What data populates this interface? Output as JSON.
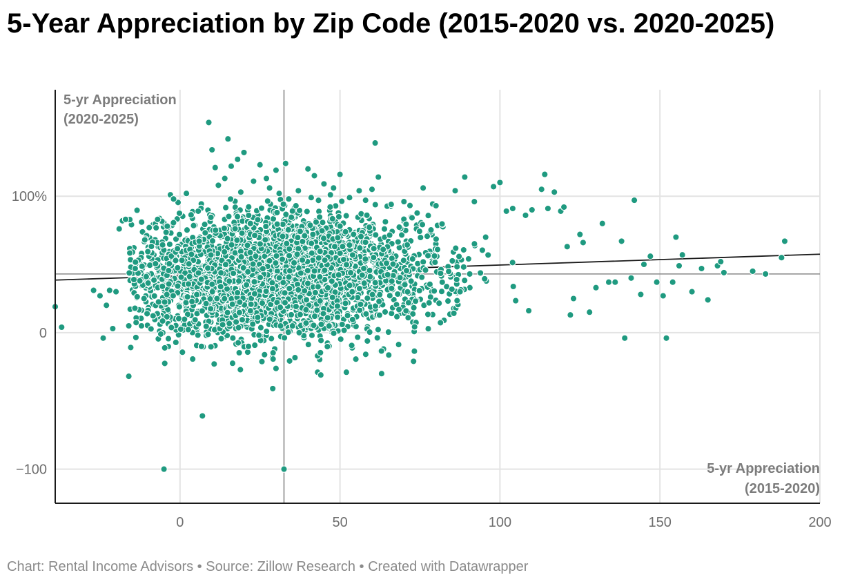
{
  "title": "5-Year Appreciation by Zip Code (2015-2020 vs. 2020-2025)",
  "footer": "Chart: Rental Income Advisors • Source: Zillow Research • Created with Datawrapper",
  "colors": {
    "point": "#1f9a80",
    "point_stroke": "#ffffff",
    "grid": "#e3e3e3",
    "axis": "#1a1a1a",
    "reference": "#888888",
    "trend": "#1a1a1a"
  },
  "chart_data": {
    "type": "scatter",
    "title": "5-Year Appreciation by Zip Code (2015-2020 vs. 2020-2025)",
    "xlabel_lines": [
      "5-yr Appreciation",
      "(2015-2020)"
    ],
    "ylabel_lines": [
      "5-yr Appreciation",
      "(2020-2025)"
    ],
    "xlim": [
      -39,
      200
    ],
    "ylim": [
      -125,
      178
    ],
    "x_ticks": [
      0,
      50,
      100,
      150,
      200
    ],
    "x_tick_labels": [
      "0",
      "50",
      "100",
      "150",
      "200"
    ],
    "y_ticks": [
      -100,
      0,
      100
    ],
    "y_tick_labels": [
      "−100",
      "0",
      "100%"
    ],
    "reference_lines": {
      "x": 32.5,
      "y": 43
    },
    "trend_line": {
      "x": [
        -39,
        200
      ],
      "y": [
        38.5,
        57.5
      ]
    },
    "cloud": {
      "count": 3200,
      "x_center": 30,
      "x_spread": 24,
      "y_center": 41,
      "y_spread": 23,
      "x_min": -16,
      "x_max": 135,
      "seed": 7
    },
    "points": [
      [
        -39,
        19
      ],
      [
        -37,
        4
      ],
      [
        -27,
        31
      ],
      [
        -25,
        27
      ],
      [
        -24,
        -4
      ],
      [
        -23,
        20
      ],
      [
        -22,
        31
      ],
      [
        -21,
        3
      ],
      [
        -20,
        30
      ],
      [
        -19,
        76
      ],
      [
        -18,
        82
      ],
      [
        -17,
        83
      ],
      [
        -16,
        -32
      ],
      [
        -16,
        5
      ],
      [
        -14,
        47
      ],
      [
        -12,
        81
      ],
      [
        -11,
        68
      ],
      [
        -7,
        83
      ],
      [
        -6,
        -1
      ],
      [
        -5,
        -100
      ],
      [
        -4,
        78
      ],
      [
        -3,
        101
      ],
      [
        -2,
        98
      ],
      [
        2,
        102
      ],
      [
        6,
        67
      ],
      [
        7,
        -61
      ],
      [
        9,
        154
      ],
      [
        10,
        134
      ],
      [
        11,
        121
      ],
      [
        12,
        108
      ],
      [
        14,
        113
      ],
      [
        15,
        142
      ],
      [
        16,
        122
      ],
      [
        18,
        127
      ],
      [
        19,
        103
      ],
      [
        20,
        132
      ],
      [
        22,
        80
      ],
      [
        23,
        111
      ],
      [
        25,
        123
      ],
      [
        27,
        113
      ],
      [
        28,
        106
      ],
      [
        29,
        -41
      ],
      [
        30,
        119
      ],
      [
        31,
        102
      ],
      [
        32.5,
        -100
      ],
      [
        33,
        124
      ],
      [
        34,
        98
      ],
      [
        37,
        104
      ],
      [
        40,
        120
      ],
      [
        41,
        99
      ],
      [
        42,
        115
      ],
      [
        43,
        -29
      ],
      [
        44,
        -31
      ],
      [
        45,
        109
      ],
      [
        47,
        101
      ],
      [
        48,
        106
      ],
      [
        50,
        116
      ],
      [
        52,
        -29
      ],
      [
        53,
        99
      ],
      [
        56,
        104
      ],
      [
        58,
        97
      ],
      [
        60,
        105
      ],
      [
        61,
        139
      ],
      [
        62,
        114
      ],
      [
        63,
        -30
      ],
      [
        66,
        94
      ],
      [
        70,
        96
      ],
      [
        73,
        -21
      ],
      [
        76,
        106
      ],
      [
        80,
        93
      ],
      [
        86,
        104
      ],
      [
        89,
        114
      ],
      [
        92,
        96
      ],
      [
        98,
        107
      ],
      [
        100,
        110
      ],
      [
        102,
        89
      ],
      [
        104,
        91
      ],
      [
        108,
        86
      ],
      [
        110,
        90
      ],
      [
        113,
        105
      ],
      [
        114,
        116
      ],
      [
        115,
        91
      ],
      [
        117,
        103
      ],
      [
        119,
        89
      ],
      [
        120,
        92
      ],
      [
        121,
        63
      ],
      [
        122,
        13
      ],
      [
        123,
        25
      ],
      [
        125,
        72
      ],
      [
        126,
        66
      ],
      [
        128,
        15
      ],
      [
        130,
        33
      ],
      [
        132,
        80
      ],
      [
        134,
        37
      ],
      [
        136,
        37
      ],
      [
        138,
        67
      ],
      [
        139,
        -4
      ],
      [
        141,
        40
      ],
      [
        142,
        97
      ],
      [
        144,
        28
      ],
      [
        145,
        50
      ],
      [
        147,
        56
      ],
      [
        149,
        37
      ],
      [
        151,
        27
      ],
      [
        152,
        -4
      ],
      [
        154,
        37
      ],
      [
        155,
        70
      ],
      [
        156,
        49
      ],
      [
        157,
        57
      ],
      [
        160,
        30
      ],
      [
        163,
        47
      ],
      [
        165,
        24
      ],
      [
        168,
        49
      ],
      [
        169,
        52
      ],
      [
        170,
        44
      ],
      [
        179,
        45
      ],
      [
        183,
        43
      ],
      [
        188,
        55
      ],
      [
        189,
        67
      ]
    ]
  }
}
